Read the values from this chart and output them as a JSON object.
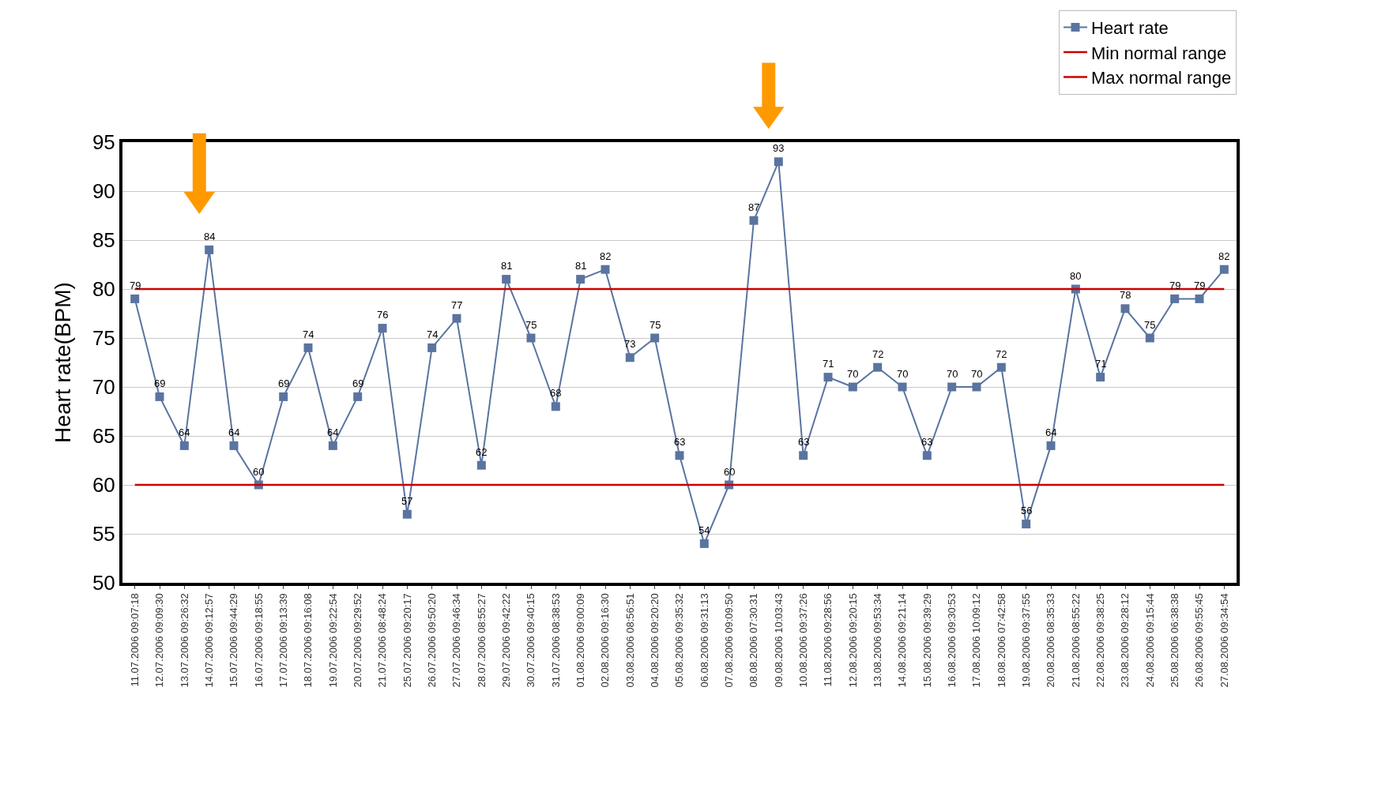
{
  "chart_data": {
    "type": "line",
    "ylabel": "Heart rate(BPM)",
    "categories": [
      "11.07.2006 09:07:18",
      "12.07.2006 09:09:30",
      "13.07.2006 09:26:32",
      "14.07.2006 09:12:57",
      "15.07.2006 09:44:29",
      "16.07.2006 09:18:55",
      "17.07.2006 09:13:39",
      "18.07.2006 09:16:08",
      "19.07.2006 09:22:54",
      "20.07.2006 09:29:52",
      "21.07.2006 08:48:24",
      "25.07.2006 09:20:17",
      "26.07.2006 09:50:20",
      "27.07.2006 09:46:34",
      "28.07.2006 08:55:27",
      "29.07.2006 09:42:22",
      "30.07.2006 09:40:15",
      "31.07.2006 08:38:53",
      "01.08.2006 09:00:09",
      "02.08.2006 09:16:30",
      "03.08.2006 08:56:51",
      "04.08.2006 09:20:20",
      "05.08.2006 09:35:32",
      "06.08.2006 09:31:13",
      "07.08.2006 09:09:50",
      "08.08.2006 07:30:31",
      "09.08.2006 10:03:43",
      "10.08.2006 09:37:26",
      "11.08.2006 09:28:56",
      "12.08.2006 09:20:15",
      "13.08.2006 09:53:34",
      "14.08.2006 09:21:14",
      "15.08.2006 09:39:29",
      "16.08.2006 09:30:53",
      "17.08.2006 10:09:12",
      "18.08.2006 07:42:58",
      "19.08.2006 09:37:55",
      "20.08.2006 08:35:33",
      "21.08.2006 08:55:22",
      "22.08.2006 09:38:25",
      "23.08.2006 09:28:12",
      "24.08.2006 09:15:44",
      "25.08.2006 06:38:38",
      "26.08.2006 09:55:45",
      "27.08.2006 09:34:54"
    ],
    "series": [
      {
        "name": "Heart rate",
        "color": "#5a74a0",
        "marker": "square",
        "data_labels": true,
        "values": [
          79,
          69,
          64,
          84,
          64,
          60,
          69,
          74,
          64,
          69,
          76,
          57,
          74,
          77,
          62,
          81,
          75,
          68,
          81,
          82,
          73,
          75,
          63,
          54,
          60,
          87,
          93,
          63,
          71,
          70,
          72,
          70,
          63,
          70,
          70,
          72,
          56,
          64,
          80,
          71,
          78,
          75,
          79,
          79,
          82
        ]
      },
      {
        "name": "Min normal range",
        "color": "#cc0000",
        "marker": "none",
        "values": [
          60,
          60,
          60,
          60,
          60,
          60,
          60,
          60,
          60,
          60,
          60,
          60,
          60,
          60,
          60,
          60,
          60,
          60,
          60,
          60,
          60,
          60,
          60,
          60,
          60,
          60,
          60,
          60,
          60,
          60,
          60,
          60,
          60,
          60,
          60,
          60,
          60,
          60,
          60,
          60,
          60,
          60,
          60,
          60,
          60
        ]
      },
      {
        "name": "Max normal range",
        "color": "#cc0000",
        "marker": "none",
        "values": [
          80,
          80,
          80,
          80,
          80,
          80,
          80,
          80,
          80,
          80,
          80,
          80,
          80,
          80,
          80,
          80,
          80,
          80,
          80,
          80,
          80,
          80,
          80,
          80,
          80,
          80,
          80,
          80,
          80,
          80,
          80,
          80,
          80,
          80,
          80,
          80,
          80,
          80,
          80,
          80,
          80,
          80,
          80,
          80,
          80
        ]
      }
    ],
    "ylim": [
      50,
      95
    ],
    "yticks": [
      50,
      55,
      60,
      65,
      70,
      75,
      80,
      85,
      90,
      95
    ],
    "grid": "y",
    "legend": "top right",
    "line_style": "solid"
  }
}
